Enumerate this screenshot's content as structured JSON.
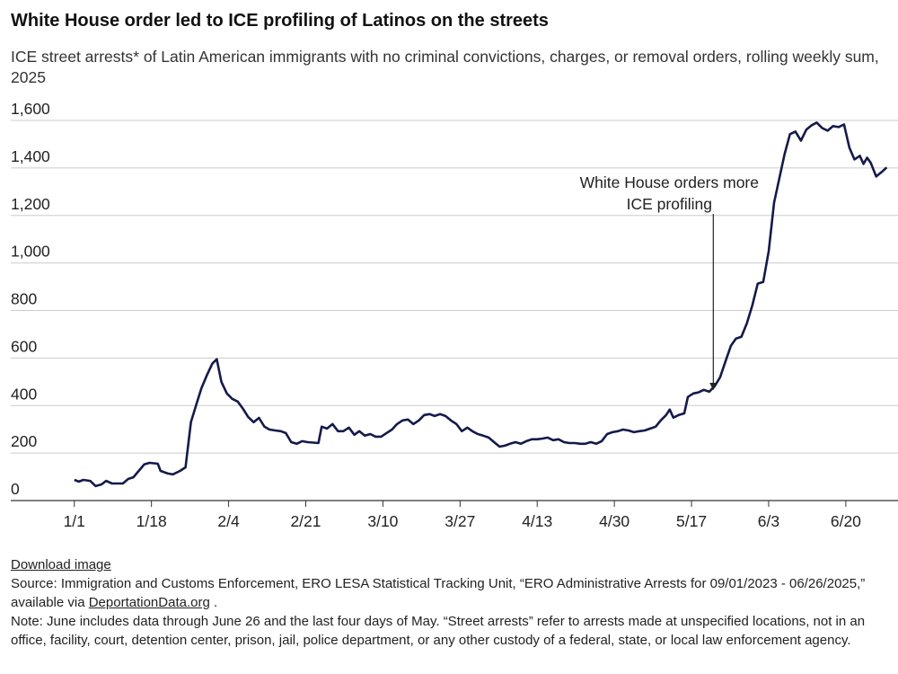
{
  "chart_data": {
    "type": "line",
    "title": "White House order led to ICE profiling of Latinos on the streets",
    "subtitle": "ICE street arrests* of Latin American immigrants with no criminal convictions, charges, or removal orders, rolling weekly sum, 2025",
    "x": [
      0,
      1,
      2,
      3.5,
      4.7,
      6,
      7,
      8.3,
      10.7,
      11.9,
      13,
      14.2,
      15.4,
      16.6,
      18.4,
      19,
      20.6,
      21.7,
      23.3,
      24.5,
      25.7,
      26.9,
      28,
      29.2,
      30.4,
      31.4,
      32.4,
      33.6,
      34.8,
      36,
      37.2,
      38.3,
      39.5,
      40.7,
      41.9,
      43,
      44.3,
      45.5,
      46.6,
      47.8,
      49,
      50.2,
      51.4,
      53.8,
      54.5,
      55.7,
      56.9,
      58.1,
      59.3,
      60.5,
      61.7,
      62.8,
      64,
      65.2,
      66.4,
      67.6,
      68.8,
      70,
      71.1,
      72.3,
      73.5,
      74.7,
      75.9,
      77.1,
      78.3,
      79.4,
      80.6,
      81.8,
      83,
      84.2,
      85.4,
      86.6,
      87.7,
      88.9,
      90.1,
      91.3,
      92.5,
      93.7,
      94.9,
      96,
      97.2,
      98.4,
      99.6,
      100.8,
      102,
      103.2,
      104.3,
      105.5,
      106.7,
      107.9,
      109.1,
      110.3,
      111.5,
      112.6,
      113.8,
      115,
      116.2,
      117.4,
      118.6,
      119.8,
      120.9,
      122.1,
      123.3,
      124.5,
      125.7,
      126.9,
      128.1,
      129.2,
      130.4,
      131.2,
      132,
      133.2,
      134.4,
      135.2,
      136.4,
      137.5,
      138.7,
      139.9,
      141.1,
      142.3,
      143.5,
      144.7,
      145.8,
      147,
      148.2,
      149.4,
      150.6,
      151.8,
      153,
      154.2,
      155.3,
      156.5,
      157.7,
      158.9,
      160.1,
      161.3,
      162.5,
      163.6,
      164.8,
      166,
      167.2,
      168.4,
      169.6,
      170.8,
      171.9,
      173.1,
      173.9,
      174.7,
      175.5,
      176.7,
      177.9,
      179
    ],
    "series": [
      {
        "name": "ICE street arrests",
        "color": "#141a4a",
        "values": [
          87,
          80,
          87,
          83,
          61,
          68,
          83,
          72,
          72,
          91,
          98,
          125,
          152,
          159,
          155,
          125,
          114,
          110,
          125,
          140,
          330,
          405,
          473,
          527,
          576,
          595,
          500,
          451,
          428,
          417,
          386,
          352,
          330,
          348,
          311,
          299,
          295,
          292,
          284,
          246,
          239,
          250,
          246,
          242,
          311,
          303,
          322,
          292,
          292,
          307,
          277,
          292,
          273,
          280,
          269,
          269,
          284,
          299,
          322,
          337,
          341,
          322,
          337,
          360,
          364,
          356,
          364,
          356,
          337,
          322,
          292,
          307,
          292,
          280,
          273,
          265,
          246,
          227,
          231,
          239,
          246,
          239,
          250,
          258,
          258,
          261,
          265,
          254,
          258,
          246,
          242,
          242,
          239,
          239,
          246,
          239,
          250,
          280,
          288,
          292,
          299,
          295,
          288,
          292,
          295,
          303,
          311,
          337,
          360,
          383,
          349,
          360,
          367,
          436,
          451,
          455,
          466,
          458,
          481,
          519,
          587,
          652,
          682,
          689,
          746,
          822,
          913,
          920,
          1049,
          1254,
          1352,
          1458,
          1542,
          1553,
          1515,
          1561,
          1580,
          1591,
          1568,
          1557,
          1576,
          1572,
          1583,
          1485,
          1436,
          1451,
          1417,
          1443,
          1421,
          1364,
          1383,
          1402
        ]
      }
    ],
    "xlim": [
      -14,
      181.5
    ],
    "xticks": [
      {
        "value": 0,
        "label": "1/1"
      },
      {
        "value": 17,
        "label": "1/18"
      },
      {
        "value": 34,
        "label": "2/4"
      },
      {
        "value": 51,
        "label": "2/21"
      },
      {
        "value": 68,
        "label": "3/10"
      },
      {
        "value": 85,
        "label": "3/27"
      },
      {
        "value": 102,
        "label": "4/13"
      },
      {
        "value": 119,
        "label": "4/30"
      },
      {
        "value": 136,
        "label": "5/17"
      },
      {
        "value": 153,
        "label": "6/3"
      },
      {
        "value": 170,
        "label": "6/20"
      }
    ],
    "ylim": [
      0,
      1600
    ],
    "yticks": [
      0,
      {
        "value": 200,
        "label": "200"
      },
      {
        "value": 400,
        "label": "400"
      },
      {
        "value": 600,
        "label": "600"
      },
      {
        "value": 800,
        "label": "800"
      },
      {
        "value": 1000,
        "label": "1,000"
      },
      {
        "value": 1200,
        "label": "1,200"
      },
      {
        "value": 1400,
        "label": "1,400"
      },
      {
        "value": 1600,
        "label": "1,600"
      }
    ],
    "grid": true,
    "annotation": {
      "lines": [
        "White House orders more",
        "ICE profiling"
      ],
      "x": 140.8,
      "y": 460
    },
    "download": "Download image",
    "source": [
      "Source: Immigration and Customs Enforcement, ERO LESA Statistical Tracking Unit, “ERO Administrative Arrests for 09/01/2023 - 06/26/2025,” available via ",
      "DeportationData.org",
      " ."
    ],
    "note": "Note: June includes data through June 26 and the last four days of May. “Street arrests” refer to arrests made at unspecified locations, not in an office, facility, court, detention center, prison, jail, police department, or any other custody of a federal, state, or local law enforcement agency."
  }
}
